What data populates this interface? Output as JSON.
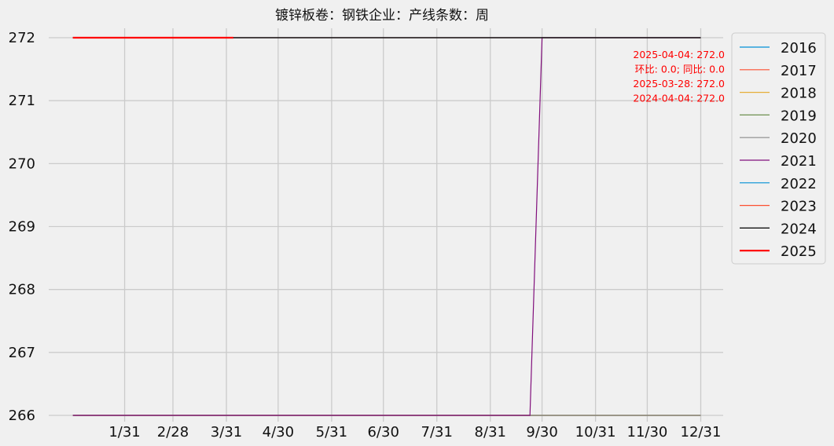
{
  "chart_data": {
    "type": "line",
    "title": "镀锌板卷：钢铁企业：产线条数：周",
    "xlabel": "",
    "ylabel": "",
    "x_tick_labels": [
      "1/31",
      "2/28",
      "3/31",
      "4/30",
      "5/31",
      "6/30",
      "7/31",
      "8/31",
      "9/30",
      "10/31",
      "11/30",
      "12/31"
    ],
    "ylim": [
      265.9,
      272.15
    ],
    "y_ticks": [
      266,
      267,
      268,
      269,
      270,
      271,
      272
    ],
    "grid": true,
    "legend_placement": "outside-right",
    "annotations": [
      "2025-04-04: 272.0",
      "环比: 0.0; 同比: 0.0",
      "2025-03-28: 272.0",
      "2024-04-04: 272.0"
    ],
    "series": [
      {
        "name": "2016",
        "color": "#008fd5",
        "width": 1.2,
        "points": [
          [
            1,
            266
          ],
          [
            365,
            266
          ]
        ]
      },
      {
        "name": "2017",
        "color": "#fc4f30",
        "width": 1.2,
        "points": [
          [
            1,
            266
          ],
          [
            365,
            266
          ]
        ]
      },
      {
        "name": "2018",
        "color": "#e5ae38",
        "width": 1.2,
        "points": [
          [
            1,
            266
          ],
          [
            365,
            266
          ]
        ]
      },
      {
        "name": "2019",
        "color": "#6d904f",
        "width": 1.2,
        "points": [
          [
            1,
            266
          ],
          [
            365,
            266
          ]
        ]
      },
      {
        "name": "2020",
        "color": "#8b8b8b",
        "width": 1.2,
        "points": [
          [
            1,
            266
          ],
          [
            365,
            266
          ]
        ]
      },
      {
        "name": "2021",
        "color": "#810f7c",
        "width": 1.2,
        "points": [
          [
            1,
            266
          ],
          [
            266,
            266
          ],
          [
            273,
            272
          ],
          [
            365,
            272
          ]
        ]
      },
      {
        "name": "2022",
        "color": "#008fd5",
        "width": 1.2,
        "points": [
          [
            1,
            272
          ],
          [
            365,
            272
          ]
        ]
      },
      {
        "name": "2023",
        "color": "#fc4f30",
        "width": 1.2,
        "points": [
          [
            1,
            272
          ],
          [
            365,
            272
          ]
        ]
      },
      {
        "name": "2024",
        "color": "#000000",
        "width": 1.2,
        "points": [
          [
            1,
            272
          ],
          [
            365,
            272
          ]
        ]
      },
      {
        "name": "2025",
        "color": "#ff0000",
        "width": 2.2,
        "points": [
          [
            1,
            272
          ],
          [
            94,
            272
          ]
        ]
      }
    ]
  }
}
